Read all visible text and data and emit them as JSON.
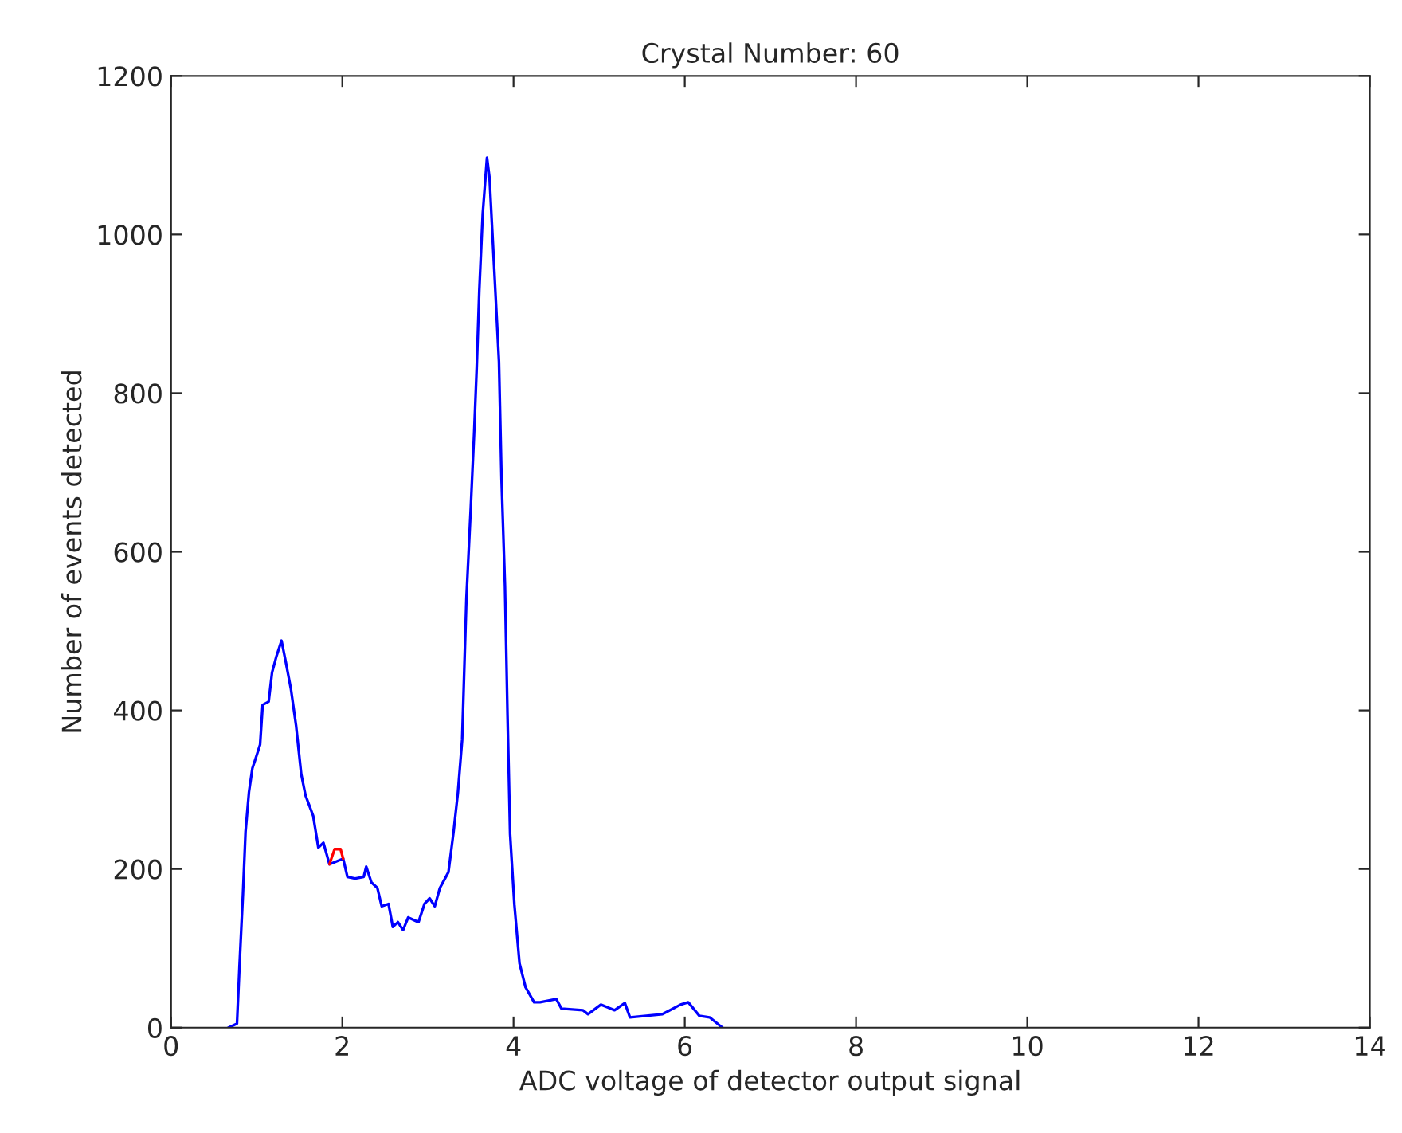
{
  "chart_data": {
    "type": "line",
    "title": "Crystal Number: 60",
    "xlabel": "ADC voltage of detector output signal",
    "ylabel": "Number of events detected",
    "xlim": [
      0,
      14
    ],
    "xticks": [
      0,
      2,
      4,
      6,
      8,
      10,
      12,
      14
    ],
    "ylim": [
      0,
      1200
    ],
    "yticks": [
      0,
      200,
      400,
      600,
      800,
      1000,
      1200
    ],
    "grid": false,
    "marker": "none",
    "line_style": "solid",
    "series": [
      {
        "color": "#0000ff",
        "x": [
          0.67,
          0.77,
          0.8,
          0.84,
          0.87,
          0.91,
          0.95,
          0.99,
          1.04,
          1.07,
          1.14,
          1.18,
          1.23,
          1.29,
          1.34,
          1.4,
          1.46,
          1.52,
          1.57,
          1.66,
          1.72,
          1.78,
          1.85,
          1.91,
          1.98,
          2.01,
          2.06,
          2.15,
          2.25,
          2.28,
          2.34,
          2.41,
          2.46,
          2.54,
          2.59,
          2.65,
          2.71,
          2.77,
          2.89,
          2.96,
          3.02,
          3.08,
          3.14,
          3.24,
          3.3,
          3.35,
          3.4,
          3.45,
          3.5,
          3.54,
          3.57,
          3.6,
          3.64,
          3.69,
          3.72,
          3.77,
          3.83,
          3.86,
          3.9,
          3.93,
          3.96,
          4.01,
          4.07,
          4.14,
          4.24,
          4.31,
          4.5,
          4.56,
          4.81,
          4.87,
          5.02,
          5.18,
          5.3,
          5.36,
          5.55,
          5.74,
          5.95,
          6.04,
          6.17,
          6.29,
          6.44
        ],
        "values": [
          0,
          5,
          79,
          169,
          247,
          297,
          327,
          340,
          357,
          407,
          411,
          448,
          468,
          488,
          461,
          427,
          381,
          320,
          293,
          267,
          227,
          233,
          206,
          null,
          null,
          213,
          190,
          188,
          190,
          203,
          183,
          176,
          153,
          156,
          127,
          133,
          123,
          139,
          133,
          156,
          163,
          153,
          176,
          196,
          247,
          296,
          363,
          542,
          654,
          750,
          832,
          929,
          1026,
          1097,
          1071,
          966,
          840,
          691,
          557,
          393,
          244,
          155,
          81,
          51,
          32,
          32,
          36,
          24,
          22,
          17,
          29,
          22,
          31,
          13,
          15,
          17,
          29,
          32,
          15,
          13,
          0
        ]
      },
      {
        "color": "#ff0000",
        "x": [
          1.85,
          1.91,
          1.98,
          2.01
        ],
        "values": [
          206,
          225,
          225,
          213
        ]
      }
    ]
  }
}
